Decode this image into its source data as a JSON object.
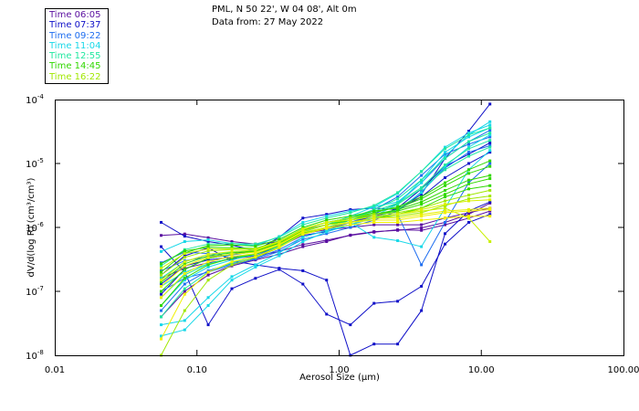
{
  "header": {
    "station": "PML, N 50 22', W 04 08', Alt 0m",
    "date": "Data from: 27 May 2022"
  },
  "legend": [
    {
      "label": "Time 06:05",
      "color": "#5a0fa0"
    },
    {
      "label": "Time 07:37",
      "color": "#1010c8"
    },
    {
      "label": "Time 09:22",
      "color": "#1e6ef0"
    },
    {
      "label": "Time 11:04",
      "color": "#18d8e8"
    },
    {
      "label": "Time 12:55",
      "color": "#20e8a0"
    },
    {
      "label": "Time 14:45",
      "color": "#30d800"
    },
    {
      "label": "Time 16:22",
      "color": "#a0e800"
    }
  ],
  "chart_data": {
    "type": "line",
    "title": "PML, N 50 22', W 04 08', Alt 0m — Data from: 27 May 2022",
    "xlabel": "Aerosol Size (µm)",
    "ylabel": "dV/d(log R) (cm³/cm³)",
    "xscale": "log",
    "yscale": "log",
    "xlim": [
      0.01,
      100
    ],
    "ylim": [
      1e-08,
      0.0001
    ],
    "x_ticks": [
      "0.01",
      "0.10",
      "1.00",
      "10.00",
      "100.00"
    ],
    "y_ticks": [
      {
        "base": "10",
        "exp": "-4"
      },
      {
        "base": "10",
        "exp": "-5"
      },
      {
        "base": "10",
        "exp": "-6"
      },
      {
        "base": "10",
        "exp": "-7"
      },
      {
        "base": "10",
        "exp": "-8"
      }
    ],
    "legend_position": "top-left (outside)",
    "grid": false,
    "x": [
      0.056,
      0.082,
      0.12,
      0.176,
      0.258,
      0.379,
      0.556,
      0.816,
      1.2,
      1.76,
      2.58,
      3.79,
      5.56,
      8.16,
      11.5
    ],
    "series": [
      {
        "name": "06:05",
        "color": "#5a0fa0",
        "values": [
          7.5e-07,
          7.9e-07,
          6.9e-07,
          6e-07,
          5.5e-07,
          6e-07,
          8e-07,
          9.2e-07,
          1e-06,
          1.1e-06,
          1.1e-06,
          1.1e-06,
          1.4e-06,
          1.7e-06,
          2e-06
        ]
      },
      {
        "name": "06:05",
        "color": "#5a0fa0",
        "values": [
          1.6e-07,
          2.3e-07,
          2.8e-07,
          3.2e-07,
          3.6e-07,
          4.2e-07,
          5.4e-07,
          6.3e-07,
          7.5e-07,
          8.4e-07,
          9.2e-07,
          9e-07,
          1.1e-06,
          1.4e-06,
          1.8e-06
        ]
      },
      {
        "name": "06:05",
        "color": "#5a0fa0",
        "values": [
          4e-08,
          1e-07,
          1.8e-07,
          2.5e-07,
          3.1e-07,
          3.8e-07,
          5e-07,
          6e-07,
          7.6e-07,
          8.6e-07,
          9e-07,
          9.8e-07,
          1.2e-06,
          1.6e-06,
          2.4e-06
        ]
      },
      {
        "name": "07:37",
        "color": "#1010c8",
        "values": [
          1.2e-06,
          7.3e-07,
          6e-07,
          5.3e-07,
          4.3e-07,
          7e-07,
          1.4e-06,
          1.6e-06,
          1.9e-06,
          2e-06,
          1.9e-06,
          3.3e-06,
          1.2e-05,
          3.2e-05,
          8.5e-05
        ]
      },
      {
        "name": "07:37",
        "color": "#1010c8",
        "values": [
          5e-07,
          2e-07,
          3e-08,
          1.1e-07,
          1.6e-07,
          2.2e-07,
          1.3e-07,
          4.4e-08,
          3e-08,
          6.5e-08,
          7e-08,
          1.2e-07,
          5.5e-07,
          1.2e-06,
          1.6e-06
        ]
      },
      {
        "name": "07:37",
        "color": "#1010c8",
        "values": [
          1.8e-07,
          3.6e-07,
          4.8e-07,
          3e-07,
          2.6e-07,
          2.3e-07,
          2.1e-07,
          1.5e-07,
          1e-08,
          1.5e-08,
          1.5e-08,
          5e-08,
          8e-07,
          1.8e-06,
          2.5e-06
        ]
      },
      {
        "name": "07:37",
        "color": "#1010c8",
        "values": [
          9e-08,
          2.2e-07,
          3.3e-07,
          3.8e-07,
          4.4e-07,
          5.6e-07,
          8.5e-07,
          9.5e-07,
          1.2e-06,
          1.5e-06,
          1.9e-06,
          3e-06,
          6e-06,
          1e-05,
          1.5e-05
        ]
      },
      {
        "name": "07:37",
        "color": "#1010c8",
        "values": [
          1.3e-07,
          2.5e-07,
          3.1e-07,
          3.4e-07,
          3.8e-07,
          5e-07,
          7.5e-07,
          8.6e-07,
          1.1e-06,
          1.4e-06,
          2e-06,
          4e-06,
          9e-06,
          1.4e-05,
          2.1e-05
        ]
      },
      {
        "name": "09:22",
        "color": "#1e6ef0",
        "values": [
          2.8e-07,
          4.1e-07,
          3.9e-07,
          3.4e-07,
          3.6e-07,
          5e-07,
          8e-07,
          1e-06,
          1.3e-06,
          1.5e-06,
          1.6e-06,
          2.6e-07,
          1.2e-06,
          5e-06,
          1e-05
        ]
      },
      {
        "name": "09:22",
        "color": "#1e6ef0",
        "values": [
          5e-08,
          1.3e-07,
          2.1e-07,
          2.7e-07,
          3.3e-07,
          4.5e-07,
          7e-07,
          9e-07,
          1.2e-06,
          1.6e-06,
          2.4e-06,
          5e-06,
          1.2e-05,
          2.2e-05,
          3.3e-05
        ]
      },
      {
        "name": "09:22",
        "color": "#1e6ef0",
        "values": [
          2.1e-07,
          3e-07,
          3.5e-07,
          3.7e-07,
          4.2e-07,
          5.8e-07,
          9.2e-07,
          1.1e-06,
          1.4e-06,
          1.9e-06,
          3e-06,
          6.5e-06,
          1.4e-05,
          2e-05,
          2.6e-05
        ]
      },
      {
        "name": "09:22",
        "color": "#1e6ef0",
        "values": [
          1e-07,
          1.6e-07,
          2e-07,
          2.6e-07,
          3.2e-07,
          4.2e-07,
          6.5e-07,
          8e-07,
          1e-06,
          1.3e-06,
          1.8e-06,
          3.6e-06,
          8.5e-06,
          1.5e-05,
          1.9e-05
        ]
      },
      {
        "name": "11:04",
        "color": "#18d8e8",
        "values": [
          4.2e-07,
          6e-07,
          6.4e-07,
          5.6e-07,
          5.2e-07,
          7.2e-07,
          1.2e-06,
          1.5e-06,
          1.8e-06,
          2.1e-06,
          2.5e-06,
          5e-06,
          1.3e-05,
          2.8e-05,
          4.5e-05
        ]
      },
      {
        "name": "11:04",
        "color": "#18d8e8",
        "values": [
          2e-08,
          2.5e-08,
          6e-08,
          1.5e-07,
          2.4e-07,
          3.6e-07,
          6e-07,
          8.5e-07,
          1.1e-06,
          1.5e-06,
          2.3e-06,
          5.5e-06,
          1.5e-05,
          2.6e-05,
          3.6e-05
        ]
      },
      {
        "name": "11:04",
        "color": "#18d8e8",
        "values": [
          1.2e-07,
          2e-07,
          2.7e-07,
          3.3e-07,
          3.9e-07,
          5e-07,
          8.2e-07,
          1e-06,
          1.2e-06,
          7e-07,
          6.2e-07,
          5e-07,
          2e-06,
          8e-06,
          1.6e-05
        ]
      },
      {
        "name": "11:04",
        "color": "#18d8e8",
        "values": [
          6e-08,
          1.5e-07,
          2.4e-07,
          3.1e-07,
          3.8e-07,
          5.3e-07,
          8.5e-07,
          1.1e-06,
          1.5e-06,
          2.1e-06,
          3.4e-06,
          7.5e-06,
          1.8e-05,
          3e-05,
          4e-05
        ]
      },
      {
        "name": "11:04",
        "color": "#18d8e8",
        "values": [
          3e-08,
          3.5e-08,
          8e-08,
          1.7e-07,
          2.6e-07,
          4e-07,
          7e-07,
          9e-07,
          1.1e-06,
          1.4e-06,
          1.9e-06,
          3.5e-06,
          9e-06,
          1.8e-05,
          2.8e-05
        ]
      },
      {
        "name": "12:55",
        "color": "#20e8a0",
        "values": [
          2.5e-07,
          4.5e-07,
          5.5e-07,
          5.6e-07,
          5.5e-07,
          7e-07,
          1.1e-06,
          1.4e-06,
          1.7e-06,
          2.2e-06,
          3.5e-06,
          7.5e-06,
          1.7e-05,
          2.8e-05,
          3.6e-05
        ]
      },
      {
        "name": "12:55",
        "color": "#20e8a0",
        "values": [
          8e-08,
          1.8e-07,
          2.7e-07,
          3.3e-07,
          3.9e-07,
          5.3e-07,
          8.5e-07,
          1.1e-06,
          1.4e-06,
          1.9e-06,
          2.8e-06,
          5.5e-06,
          1.2e-05,
          2.2e-05,
          3e-05
        ]
      },
      {
        "name": "12:55",
        "color": "#20e8a0",
        "values": [
          1.6e-07,
          2.9e-07,
          3.8e-07,
          4.1e-07,
          4.5e-07,
          6e-07,
          9.5e-07,
          1.2e-06,
          1.4e-06,
          1.8e-06,
          2.4e-06,
          4.2e-06,
          9.5e-06,
          1.7e-05,
          2.3e-05
        ]
      },
      {
        "name": "12:55",
        "color": "#20e8a0",
        "values": [
          4e-08,
          1.1e-07,
          2e-07,
          2.8e-07,
          3.5e-07,
          4.9e-07,
          8e-07,
          1e-06,
          1.3e-06,
          1.7e-06,
          2.3e-06,
          4e-06,
          8e-06,
          1.3e-05,
          1.8e-05
        ]
      },
      {
        "name": "14:45",
        "color": "#30d800",
        "values": [
          2e-07,
          4e-07,
          5.2e-07,
          5.3e-07,
          5.1e-07,
          6.5e-07,
          1e-06,
          1.3e-06,
          1.5e-06,
          1.8e-06,
          2e-06,
          2.8e-06,
          4.5e-06,
          7e-06,
          9e-06
        ]
      },
      {
        "name": "14:45",
        "color": "#30d800",
        "values": [
          1e-07,
          2.2e-07,
          3.3e-07,
          3.8e-07,
          4.2e-07,
          5.6e-07,
          8.8e-07,
          1.1e-06,
          1.3e-06,
          1.6e-06,
          1.9e-06,
          2.5e-06,
          3.8e-06,
          5.5e-06,
          6.5e-06
        ]
      },
      {
        "name": "14:45",
        "color": "#30d800",
        "values": [
          2.7e-07,
          4.3e-07,
          4.9e-07,
          4.8e-07,
          4.7e-07,
          6.1e-07,
          9.5e-07,
          1.2e-06,
          1.4e-06,
          1.7e-06,
          2.1e-06,
          3e-06,
          5e-06,
          8e-06,
          1.1e-05
        ]
      },
      {
        "name": "14:45",
        "color": "#30d800",
        "values": [
          6e-08,
          1.6e-07,
          2.6e-07,
          3.3e-07,
          3.8e-07,
          5.2e-07,
          8.2e-07,
          1e-06,
          1.2e-06,
          1.4e-06,
          1.6e-06,
          2e-06,
          3e-06,
          4e-06,
          4.5e-06
        ]
      },
      {
        "name": "14:45",
        "color": "#30d800",
        "values": [
          1.4e-07,
          2.7e-07,
          3.6e-07,
          4e-07,
          4.3e-07,
          5.8e-07,
          9e-07,
          1.1e-06,
          1.3e-06,
          1.6e-06,
          1.8e-06,
          2.3e-06,
          3.3e-06,
          4.8e-06,
          5.8e-06
        ]
      },
      {
        "name": "16:22",
        "color": "#a0e800",
        "values": [
          1.8e-07,
          3.4e-07,
          4.3e-07,
          4.5e-07,
          4.6e-07,
          6e-07,
          9.5e-07,
          1.2e-06,
          1.4e-06,
          1.6e-06,
          1.7e-06,
          2e-06,
          2.6e-06,
          3.2e-06,
          3.8e-06
        ]
      },
      {
        "name": "16:22",
        "color": "#a0e800",
        "values": [
          1e-08,
          5e-08,
          1.5e-07,
          2.6e-07,
          3.4e-07,
          4.8e-07,
          8e-07,
          1e-06,
          1.2e-06,
          1.4e-06,
          1.5e-06,
          1.7e-06,
          2.2e-06,
          2.8e-06,
          3.1e-06
        ]
      },
      {
        "name": "16:22",
        "color": "#c8f000",
        "values": [
          2.3e-07,
          3.9e-07,
          4.6e-07,
          4.6e-07,
          4.6e-07,
          6e-07,
          9.4e-07,
          1.2e-06,
          1.3e-06,
          1.5e-06,
          1.6e-06,
          1.8e-06,
          2e-06,
          1.4e-06,
          6e-07
        ]
      },
      {
        "name": "16:22",
        "color": "#e6f000",
        "values": [
          1.2e-07,
          2.5e-07,
          3.4e-07,
          3.8e-07,
          4.1e-07,
          5.5e-07,
          8.7e-07,
          1.1e-06,
          1.2e-06,
          1.4e-06,
          1.4e-06,
          1.6e-06,
          1.8e-06,
          1.9e-06,
          2e-06
        ]
      },
      {
        "name": "16:22",
        "color": "#f0f000",
        "values": [
          8e-08,
          1.9e-07,
          2.9e-07,
          3.5e-07,
          3.9e-07,
          5.3e-07,
          8.4e-07,
          1e-06,
          1.2e-06,
          1.3e-06,
          1.3e-06,
          1.5e-06,
          1.7e-06,
          1.8e-06,
          1.9e-06
        ]
      },
      {
        "name": "16:22",
        "color": "#d8f000",
        "values": [
          1.5e-07,
          2.9e-07,
          3.8e-07,
          4.2e-07,
          4.4e-07,
          5.9e-07,
          9.2e-07,
          1.2e-06,
          1.3e-06,
          1.5e-06,
          1.6e-06,
          1.9e-06,
          2.3e-06,
          2.6e-06,
          2.7e-06
        ]
      },
      {
        "name": "16:22",
        "color": "#f0f000",
        "values": [
          1.8e-08,
          9e-08,
          2e-07,
          2.9e-07,
          3.5e-07,
          4.9e-07,
          7.8e-07,
          9.6e-07,
          1.1e-06,
          1.2e-06,
          1.2e-06,
          1.3e-06,
          1.4e-06,
          1.5e-06,
          1.5e-06
        ]
      }
    ]
  }
}
